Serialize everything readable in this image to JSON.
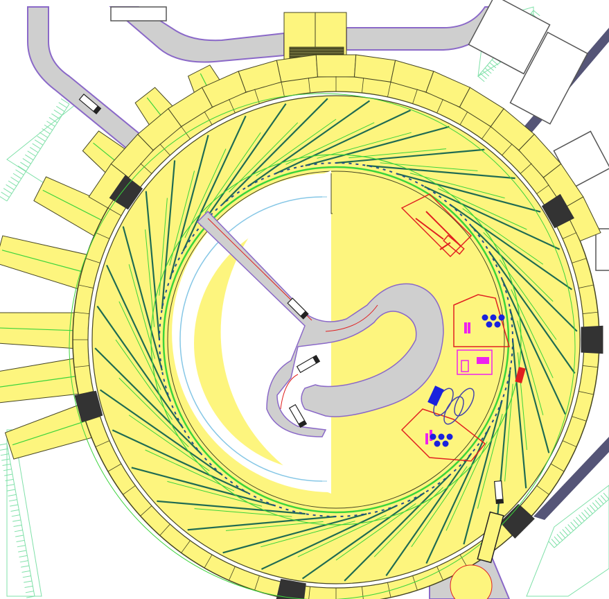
{
  "drawing": {
    "kind": "site-plan",
    "colors": {
      "background": "#ffffff",
      "building_fill": "#fdf57e",
      "building_stroke": "#444422",
      "road_fill": "#cfcfcf",
      "road_edge": "#8a68c8",
      "dark_block": "#333333",
      "beamline": "#1f6b52",
      "ring_green": "#3bd43b",
      "landscape_green": "#7fe0a8",
      "inner_blue": "#86c7e6",
      "layout_red": "#e02020",
      "equipment_magenta": "#ee22ee",
      "equipment_blue": "#1a22dd",
      "outline_gray": "#555555"
    },
    "elements": [
      {
        "name": "outer-ring-building",
        "kind": "building"
      },
      {
        "name": "storage-ring",
        "kind": "accelerator-ring"
      },
      {
        "name": "beamlines",
        "kind": "beamline-set",
        "count": 36
      },
      {
        "name": "inner-courtyard",
        "kind": "open-space"
      },
      {
        "name": "access-road",
        "kind": "road"
      },
      {
        "name": "entrance-block",
        "kind": "building"
      },
      {
        "name": "parking-lots",
        "kind": "parking"
      },
      {
        "name": "equipment-layout",
        "kind": "equipment-area"
      }
    ]
  }
}
